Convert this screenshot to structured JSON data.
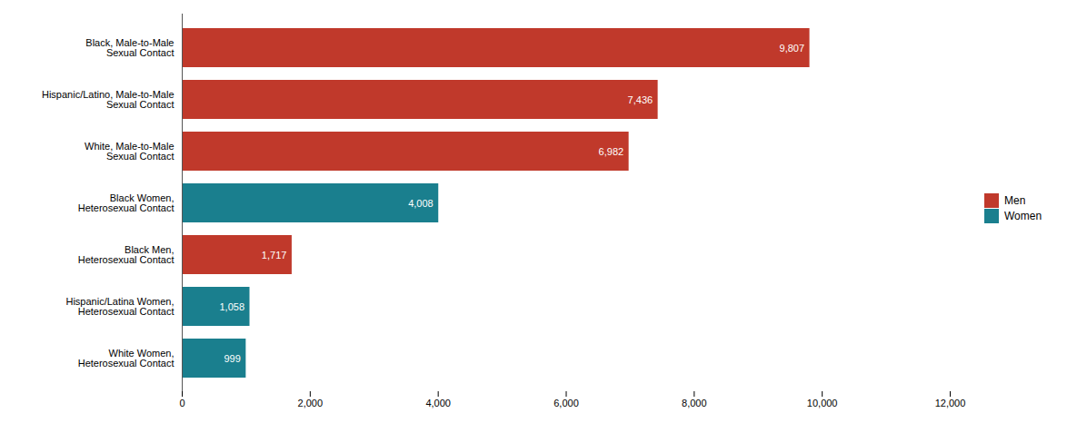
{
  "chart_data": {
    "type": "bar",
    "orientation": "horizontal",
    "categories": [
      "Black, Male-to-Male\nSexual Contact",
      "Hispanic/Latino, Male-to-Male\nSexual Contact",
      "White, Male-to-Male\nSexual Contact",
      "Black Women,\nHeterosexual Contact",
      "Black Men,\nHeterosexual Contact",
      "Hispanic/Latina Women,\nHeterosexual Contact",
      "White Women,\nHeterosexual Contact"
    ],
    "series": [
      {
        "name": "Men",
        "color": "#c0392b",
        "values": [
          9807,
          7436,
          6982,
          null,
          1717,
          null,
          null
        ],
        "value_labels": [
          "9,807",
          "7,436",
          "6,982",
          null,
          "1,717",
          null,
          null
        ]
      },
      {
        "name": "Women",
        "color": "#1a7f8e",
        "values": [
          null,
          null,
          null,
          4008,
          null,
          1058,
          999
        ],
        "value_labels": [
          null,
          null,
          null,
          "4,008",
          null,
          "1,058",
          "999"
        ]
      }
    ],
    "xlim": [
      0,
      12000
    ],
    "xticks": [
      0,
      {
        "value": 2000,
        "label": "2,000"
      },
      {
        "value": 4000,
        "label": "4,000"
      },
      {
        "value": 6000,
        "label": "6,000"
      },
      {
        "value": 8000,
        "label": "8,000"
      },
      {
        "value": 10000,
        "label": "10,000"
      },
      {
        "value": 12000,
        "label": "12,000"
      }
    ],
    "grid": false,
    "data_labels": true,
    "legend": "right"
  }
}
